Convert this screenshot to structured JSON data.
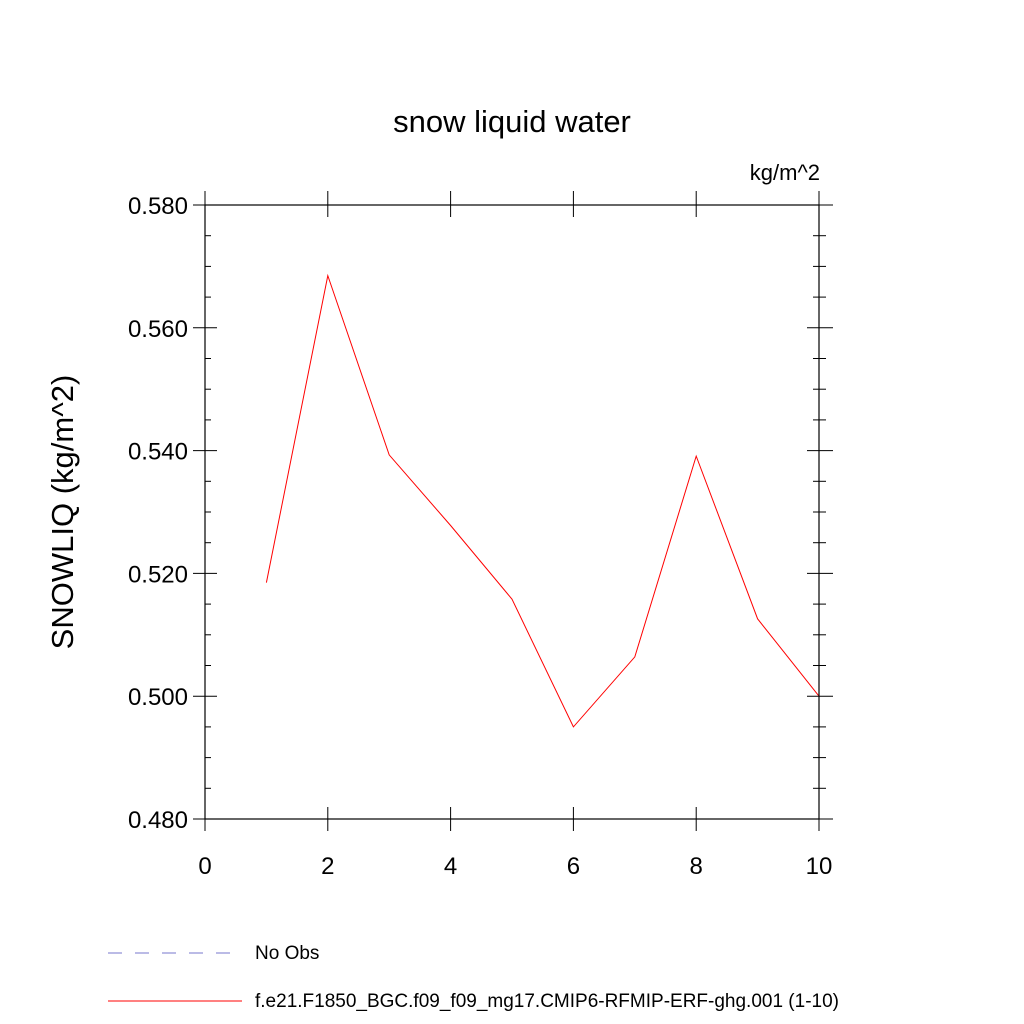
{
  "chart_data": {
    "type": "line",
    "title": "snow liquid water",
    "units": "kg/m^2",
    "xlabel": "",
    "ylabel": "SNOWLIQ  (kg/m^2)",
    "xlim": [
      0,
      10
    ],
    "ylim": [
      0.48,
      0.58
    ],
    "x_ticks": [
      0,
      2,
      4,
      6,
      8,
      10
    ],
    "x_tick_labels": [
      "0",
      "2",
      "4",
      "6",
      "8",
      "10"
    ],
    "y_ticks": [
      0.48,
      0.5,
      0.52,
      0.54,
      0.56,
      0.58
    ],
    "y_tick_labels": [
      "0.480",
      "0.500",
      "0.520",
      "0.540",
      "0.560",
      "0.580"
    ],
    "grid": false,
    "legend_position": "bottom",
    "series": [
      {
        "name": "f.e21.F1850_BGC.f09_f09_mg17.CMIP6-RFMIP-ERF-ghg.001 (1-10)",
        "color": "#ff0000",
        "x": [
          1,
          2,
          3,
          4,
          5,
          6,
          7,
          8,
          9,
          10
        ],
        "y": [
          0.5185,
          0.5685,
          0.5393,
          0.5278,
          0.5158,
          0.495,
          0.5064,
          0.5391,
          0.5126,
          0.5
        ]
      }
    ],
    "legend": [
      {
        "label": "No Obs",
        "color": "#7777cc",
        "style": "dashed"
      },
      {
        "label": "f.e21.F1850_BGC.f09_f09_mg17.CMIP6-RFMIP-ERF-ghg.001 (1-10)",
        "color": "#ff0000",
        "style": "solid"
      }
    ]
  }
}
